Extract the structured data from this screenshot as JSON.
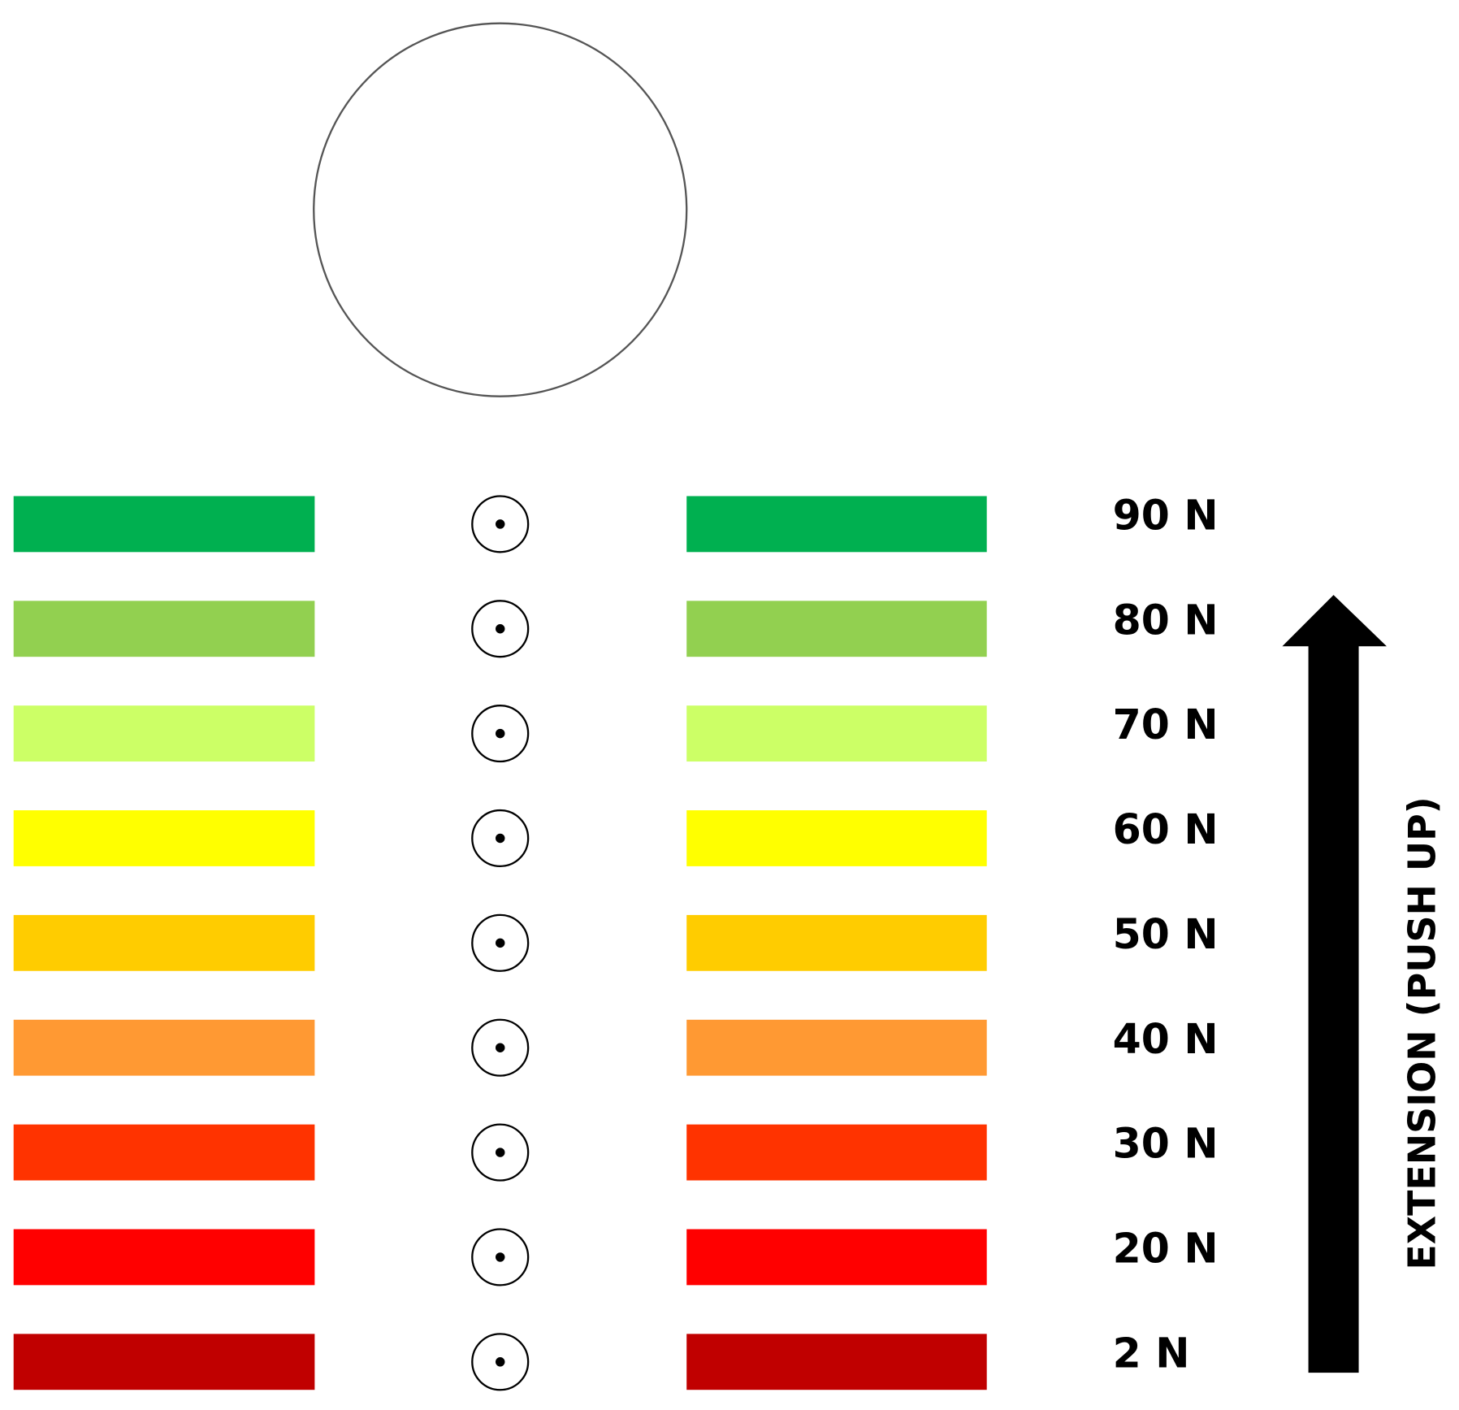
{
  "rows": [
    {
      "label": "90 N",
      "color": "#00b050"
    },
    {
      "label": "80 N",
      "color": "#92d050"
    },
    {
      "label": "70 N",
      "color": "#ccff66"
    },
    {
      "label": "60 N",
      "color": "#ffff00"
    },
    {
      "label": "50 N",
      "color": "#ffcc00"
    },
    {
      "label": "40 N",
      "color": "#ff9933"
    },
    {
      "label": "30 N",
      "color": "#ff3300"
    },
    {
      "label": "20 N",
      "color": "#ff0000"
    },
    {
      "label": "2 N",
      "color": "#c00000"
    }
  ],
  "arrow_label": "EXTENSION (PUSH UP)"
}
